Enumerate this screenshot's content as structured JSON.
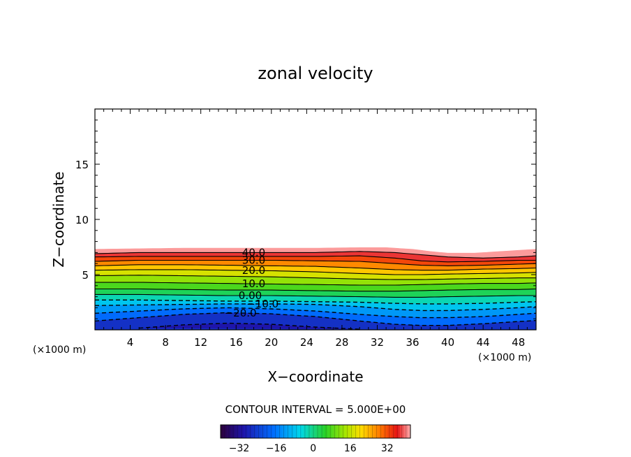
{
  "chart_data": {
    "type": "contour",
    "title": "zonal velocity",
    "xlabel": "X−coordinate",
    "ylabel": "Z−coordinate",
    "x_unit_left": "(×1000 m)",
    "x_unit_right": "(×1000 m)",
    "xlim": [
      0,
      50
    ],
    "ylim": [
      0,
      20
    ],
    "x_ticks": [
      4,
      8,
      12,
      16,
      20,
      24,
      28,
      32,
      36,
      40,
      44,
      48
    ],
    "y_ticks": [
      5,
      10,
      15
    ],
    "contour_interval_text": "CONTOUR INTERVAL = 5.000E+00",
    "field_top": [
      [
        0,
        7.3
      ],
      [
        5,
        7.35
      ],
      [
        10,
        7.4
      ],
      [
        15,
        7.4
      ],
      [
        20,
        7.4
      ],
      [
        25,
        7.4
      ],
      [
        30,
        7.45
      ],
      [
        33,
        7.45
      ],
      [
        36,
        7.3
      ],
      [
        38,
        7.1
      ],
      [
        40,
        6.95
      ],
      [
        43,
        6.95
      ],
      [
        46,
        7.1
      ],
      [
        50,
        7.3
      ]
    ],
    "contour_lines": [
      {
        "level": 40,
        "label": "40.0",
        "dashed": false,
        "y": [
          [
            0,
            6.9
          ],
          [
            5,
            7.0
          ],
          [
            10,
            7.0
          ],
          [
            15,
            7.0
          ],
          [
            20,
            7.0
          ],
          [
            25,
            7.0
          ],
          [
            30,
            7.1
          ],
          [
            34,
            7.0
          ],
          [
            37,
            6.8
          ],
          [
            40,
            6.6
          ],
          [
            44,
            6.5
          ],
          [
            48,
            6.6
          ],
          [
            50,
            6.7
          ]
        ]
      },
      {
        "level": 35,
        "label": "",
        "dashed": false,
        "y": [
          [
            0,
            6.6
          ],
          [
            5,
            6.65
          ],
          [
            10,
            6.65
          ],
          [
            15,
            6.65
          ],
          [
            20,
            6.65
          ],
          [
            25,
            6.65
          ],
          [
            30,
            6.7
          ],
          [
            34,
            6.5
          ],
          [
            37,
            6.25
          ],
          [
            40,
            6.15
          ],
          [
            44,
            6.2
          ],
          [
            48,
            6.3
          ],
          [
            50,
            6.3
          ]
        ]
      },
      {
        "level": 30,
        "label": "30.0",
        "dashed": false,
        "y": [
          [
            0,
            6.2
          ],
          [
            5,
            6.3
          ],
          [
            10,
            6.3
          ],
          [
            15,
            6.3
          ],
          [
            20,
            6.3
          ],
          [
            25,
            6.25
          ],
          [
            30,
            6.2
          ],
          [
            34,
            6.0
          ],
          [
            37,
            5.85
          ],
          [
            40,
            5.8
          ],
          [
            44,
            5.85
          ],
          [
            48,
            5.95
          ],
          [
            50,
            6.0
          ]
        ]
      },
      {
        "level": 25,
        "label": "",
        "dashed": false,
        "y": [
          [
            0,
            5.8
          ],
          [
            5,
            5.9
          ],
          [
            10,
            5.9
          ],
          [
            15,
            5.85
          ],
          [
            20,
            5.8
          ],
          [
            25,
            5.75
          ],
          [
            30,
            5.6
          ],
          [
            34,
            5.45
          ],
          [
            37,
            5.4
          ],
          [
            40,
            5.4
          ],
          [
            44,
            5.5
          ],
          [
            48,
            5.55
          ],
          [
            50,
            5.6
          ]
        ]
      },
      {
        "level": 20,
        "label": "20.0",
        "dashed": false,
        "y": [
          [
            0,
            5.4
          ],
          [
            5,
            5.45
          ],
          [
            10,
            5.45
          ],
          [
            15,
            5.4
          ],
          [
            20,
            5.35
          ],
          [
            25,
            5.25
          ],
          [
            30,
            5.1
          ],
          [
            34,
            5.0
          ],
          [
            37,
            5.0
          ],
          [
            40,
            5.05
          ],
          [
            44,
            5.1
          ],
          [
            48,
            5.15
          ],
          [
            50,
            5.2
          ]
        ]
      },
      {
        "level": 15,
        "label": "",
        "dashed": false,
        "y": [
          [
            0,
            4.9
          ],
          [
            5,
            4.95
          ],
          [
            10,
            4.9
          ],
          [
            15,
            4.85
          ],
          [
            20,
            4.8
          ],
          [
            25,
            4.7
          ],
          [
            30,
            4.6
          ],
          [
            34,
            4.55
          ],
          [
            37,
            4.55
          ],
          [
            40,
            4.6
          ],
          [
            44,
            4.65
          ],
          [
            48,
            4.7
          ],
          [
            50,
            4.7
          ]
        ]
      },
      {
        "level": 10,
        "label": "10.0",
        "dashed": false,
        "y": [
          [
            0,
            4.3
          ],
          [
            5,
            4.3
          ],
          [
            10,
            4.25
          ],
          [
            15,
            4.2
          ],
          [
            20,
            4.15
          ],
          [
            25,
            4.1
          ],
          [
            30,
            4.05
          ],
          [
            34,
            4.05
          ],
          [
            37,
            4.1
          ],
          [
            40,
            4.15
          ],
          [
            44,
            4.2
          ],
          [
            48,
            4.2
          ],
          [
            50,
            4.25
          ]
        ]
      },
      {
        "level": 5,
        "label": "",
        "dashed": false,
        "y": [
          [
            0,
            3.7
          ],
          [
            5,
            3.7
          ],
          [
            10,
            3.65
          ],
          [
            15,
            3.6
          ],
          [
            20,
            3.6
          ],
          [
            25,
            3.55
          ],
          [
            30,
            3.5
          ],
          [
            34,
            3.5
          ],
          [
            37,
            3.55
          ],
          [
            40,
            3.6
          ],
          [
            44,
            3.65
          ],
          [
            48,
            3.65
          ],
          [
            50,
            3.7
          ]
        ]
      },
      {
        "level": 0,
        "label": "0.00",
        "dashed": false,
        "y": [
          [
            0,
            3.2
          ],
          [
            5,
            3.2
          ],
          [
            10,
            3.15
          ],
          [
            15,
            3.1
          ],
          [
            20,
            3.1
          ],
          [
            25,
            3.05
          ],
          [
            30,
            3.0
          ],
          [
            34,
            2.95
          ],
          [
            37,
            2.95
          ],
          [
            40,
            3.0
          ],
          [
            44,
            3.05
          ],
          [
            48,
            3.1
          ],
          [
            50,
            3.1
          ]
        ]
      },
      {
        "level": -5,
        "label": "",
        "dashed": true,
        "y": [
          [
            0,
            2.7
          ],
          [
            5,
            2.7
          ],
          [
            10,
            2.65
          ],
          [
            15,
            2.6
          ],
          [
            20,
            2.6
          ],
          [
            25,
            2.55
          ],
          [
            30,
            2.5
          ],
          [
            34,
            2.4
          ],
          [
            37,
            2.35
          ],
          [
            40,
            2.35
          ],
          [
            44,
            2.4
          ],
          [
            48,
            2.5
          ],
          [
            50,
            2.55
          ]
        ]
      },
      {
        "level": -10,
        "label": "−10.0",
        "dashed": true,
        "y": [
          [
            0,
            2.2
          ],
          [
            5,
            2.25
          ],
          [
            10,
            2.3
          ],
          [
            15,
            2.35
          ],
          [
            20,
            2.35
          ],
          [
            25,
            2.3
          ],
          [
            30,
            2.1
          ],
          [
            34,
            1.85
          ],
          [
            37,
            1.75
          ],
          [
            40,
            1.75
          ],
          [
            44,
            1.85
          ],
          [
            48,
            2.0
          ],
          [
            50,
            2.1
          ]
        ]
      },
      {
        "level": -15,
        "label": "",
        "dashed": true,
        "y": [
          [
            0,
            1.5
          ],
          [
            5,
            1.7
          ],
          [
            10,
            1.9
          ],
          [
            15,
            2.0
          ],
          [
            20,
            1.9
          ],
          [
            25,
            1.7
          ],
          [
            30,
            1.4
          ],
          [
            34,
            1.2
          ],
          [
            37,
            1.1
          ],
          [
            40,
            1.1
          ],
          [
            44,
            1.2
          ],
          [
            48,
            1.4
          ],
          [
            50,
            1.5
          ]
        ]
      },
      {
        "level": -20,
        "label": "−20.0",
        "dashed": true,
        "y": [
          [
            0,
            0.8
          ],
          [
            5,
            1.1
          ],
          [
            10,
            1.4
          ],
          [
            15,
            1.55
          ],
          [
            20,
            1.45
          ],
          [
            25,
            1.2
          ],
          [
            30,
            0.8
          ],
          [
            34,
            0.5
          ],
          [
            37,
            0.4
          ],
          [
            40,
            0.4
          ],
          [
            44,
            0.55
          ],
          [
            48,
            0.75
          ],
          [
            50,
            0.85
          ]
        ]
      },
      {
        "level": -25,
        "label": "",
        "dashed": true,
        "y": [
          [
            5,
            0.15
          ],
          [
            10,
            0.45
          ],
          [
            15,
            0.6
          ],
          [
            20,
            0.5
          ],
          [
            25,
            0.25
          ],
          [
            30,
            0.05
          ]
        ]
      }
    ],
    "colorbar": {
      "vmin": -40,
      "vmax": 42,
      "ticks": [
        -32,
        -16,
        0,
        16,
        32
      ],
      "tick_labels": [
        "−32",
        "−16",
        "0",
        "16",
        "32"
      ]
    }
  }
}
